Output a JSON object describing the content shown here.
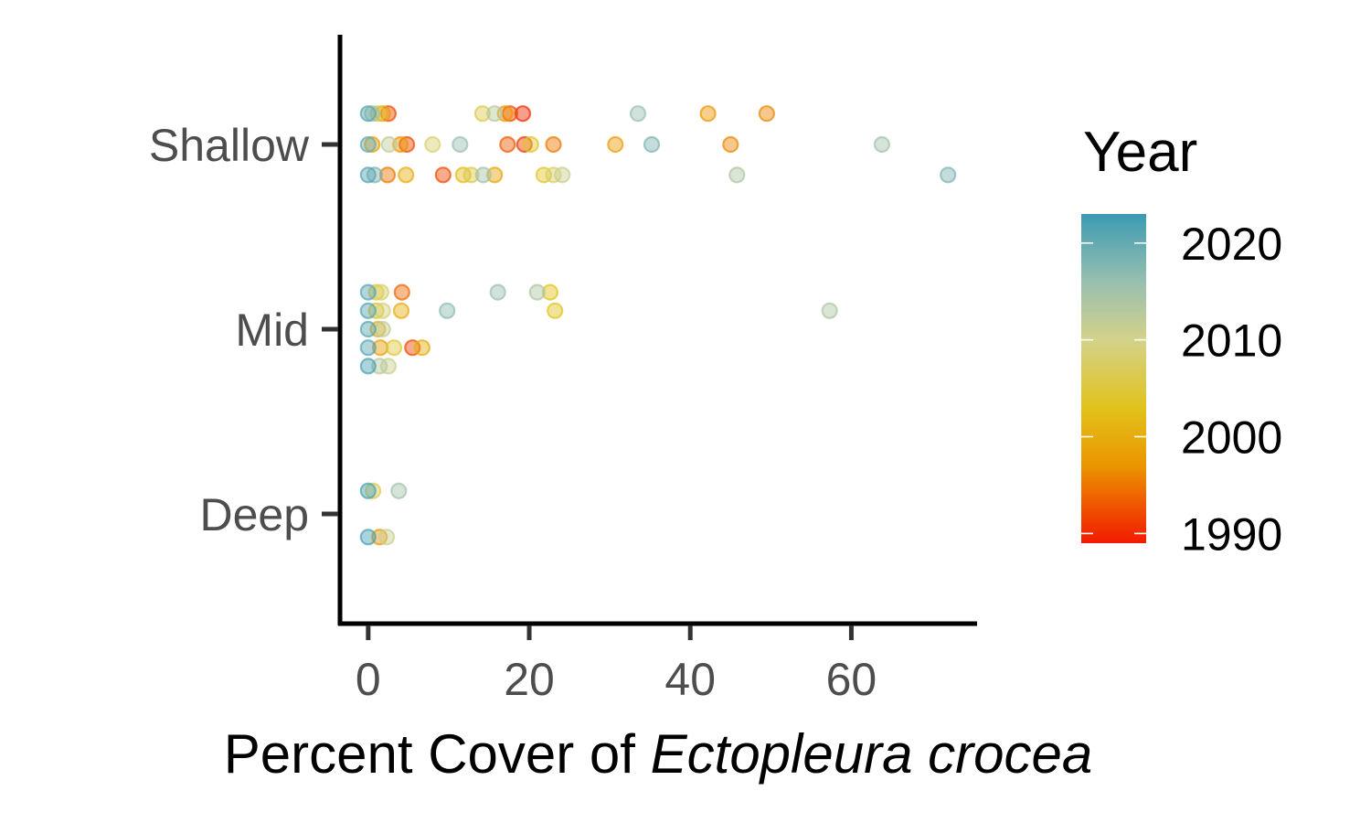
{
  "chart_data": {
    "type": "scatter",
    "title": "",
    "xlabel": {
      "normal": "Percent Cover of ",
      "italic": "Ectopleura crocea"
    },
    "ylabel": "",
    "xlim": [
      -3.5,
      75.5
    ],
    "xticks": [
      0,
      20,
      40,
      60
    ],
    "xtick_labels": [
      "0",
      "20",
      "40",
      "60"
    ],
    "categories": [
      "Shallow",
      "Mid",
      "Deep"
    ],
    "grid": false,
    "point_opacity": 0.45,
    "legend": {
      "title": "Year",
      "position": "right",
      "type": "colorbar",
      "range": [
        1989,
        2023
      ],
      "ticks": [
        2020,
        2010,
        2000,
        1990
      ],
      "tick_labels": [
        "2020",
        "2010",
        "2000",
        "1990"
      ],
      "stops": [
        {
          "year": 1989,
          "color": "#f21a00"
        },
        {
          "year": 1997,
          "color": "#eb9500"
        },
        {
          "year": 2003,
          "color": "#e1c31c"
        },
        {
          "year": 2010,
          "color": "#d3d28a"
        },
        {
          "year": 2016,
          "color": "#98bfb0"
        },
        {
          "year": 2023,
          "color": "#3b9ab2"
        }
      ]
    },
    "series": [
      {
        "name": "Shallow",
        "jitter_offsets": [
          0.335,
          0,
          -0.33
        ],
        "points": [
          [
            0,
            0.335,
            2021
          ],
          [
            0.5,
            0.335,
            2015
          ],
          [
            1.2,
            0.335,
            2005
          ],
          [
            1.8,
            0.335,
            1998
          ],
          [
            2.5,
            0.335,
            1992
          ],
          [
            14.2,
            0.335,
            2006
          ],
          [
            15.7,
            0.335,
            2013
          ],
          [
            17.0,
            0.335,
            1997
          ],
          [
            17.6,
            0.335,
            1992
          ],
          [
            19.2,
            0.335,
            1990
          ],
          [
            33.5,
            0.335,
            2016
          ],
          [
            42.2,
            0.335,
            1997
          ],
          [
            49.5,
            0.335,
            1996
          ],
          [
            0,
            0,
            2020
          ],
          [
            0.5,
            0,
            1998
          ],
          [
            2.6,
            0,
            2012
          ],
          [
            4.0,
            0,
            1997
          ],
          [
            4.8,
            0,
            1992
          ],
          [
            8.0,
            0,
            2008
          ],
          [
            11.4,
            0,
            2016
          ],
          [
            17.3,
            0,
            1993
          ],
          [
            19.4,
            0,
            1991
          ],
          [
            20.2,
            0,
            2004
          ],
          [
            23.0,
            0,
            1995
          ],
          [
            30.7,
            0,
            1998
          ],
          [
            35.2,
            0,
            2018
          ],
          [
            45.0,
            0,
            1996
          ],
          [
            63.8,
            0,
            2015
          ],
          [
            0,
            -0.33,
            2021
          ],
          [
            0.8,
            -0.33,
            2018
          ],
          [
            2.4,
            -0.33,
            1995
          ],
          [
            4.7,
            -0.33,
            2000
          ],
          [
            9.3,
            -0.33,
            1992
          ],
          [
            11.8,
            -0.33,
            2002
          ],
          [
            12.8,
            -0.33,
            2006
          ],
          [
            14.3,
            -0.33,
            2015
          ],
          [
            15.7,
            -0.33,
            1999
          ],
          [
            21.8,
            -0.33,
            2004
          ],
          [
            23.0,
            -0.33,
            2008
          ],
          [
            24.1,
            -0.33,
            2011
          ],
          [
            45.8,
            -0.33,
            2014
          ],
          [
            72.0,
            -0.33,
            2018
          ]
        ]
      },
      {
        "name": "Mid",
        "jitter_offsets": [
          0.4,
          0.2,
          0,
          -0.2,
          -0.4
        ],
        "points": [
          [
            0,
            0.4,
            2021
          ],
          [
            1.0,
            0.4,
            2005
          ],
          [
            1.6,
            0.4,
            2008
          ],
          [
            4.2,
            0.4,
            1994
          ],
          [
            16.1,
            0.4,
            2016
          ],
          [
            21.0,
            0.4,
            2014
          ],
          [
            22.6,
            0.4,
            2003
          ],
          [
            0,
            0.2,
            2021
          ],
          [
            1.0,
            0.2,
            2004
          ],
          [
            1.8,
            0.2,
            2009
          ],
          [
            4.1,
            0.2,
            2000
          ],
          [
            9.8,
            0.2,
            2017
          ],
          [
            23.2,
            0.2,
            2003
          ],
          [
            57.3,
            0.2,
            2014
          ],
          [
            0,
            0,
            2021
          ],
          [
            1.2,
            0,
            2000
          ],
          [
            1.8,
            0,
            2012
          ],
          [
            0,
            -0.2,
            2021
          ],
          [
            1.5,
            -0.2,
            1998
          ],
          [
            3.2,
            -0.2,
            2005
          ],
          [
            5.5,
            -0.2,
            1992
          ],
          [
            6.7,
            -0.2,
            2000
          ],
          [
            0,
            -0.4,
            2022
          ],
          [
            1.4,
            -0.4,
            2013
          ],
          [
            2.5,
            -0.4,
            2011
          ]
        ]
      },
      {
        "name": "Deep",
        "jitter_offsets": [
          0.25,
          -0.25
        ],
        "points": [
          [
            0,
            0.25,
            2022
          ],
          [
            0.6,
            0.25,
            2006
          ],
          [
            3.8,
            0.25,
            2015
          ],
          [
            0,
            -0.25,
            2022
          ],
          [
            1.4,
            -0.25,
            1997
          ],
          [
            2.3,
            -0.25,
            2011
          ]
        ]
      }
    ]
  }
}
